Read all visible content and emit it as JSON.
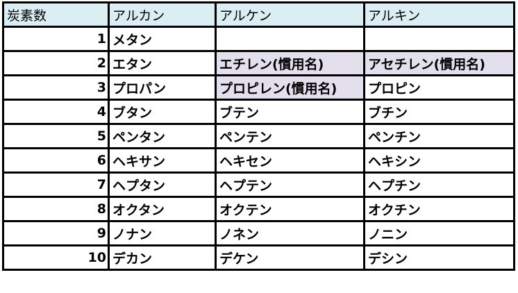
{
  "header": [
    "炭素数",
    "アルカン",
    "アルケン",
    "アルキン"
  ],
  "colors": {
    "header_bg": "#dbeef4",
    "highlight_bg": "#e4dfec"
  },
  "rows": [
    {
      "n": "1",
      "alkane": "メタン",
      "alkene": "",
      "alkyne": "",
      "alkene_highlight": false,
      "alkyne_highlight": false
    },
    {
      "n": "2",
      "alkane": "エタン",
      "alkene": "エチレン(慣用名)",
      "alkyne": "アセチレン(慣用名)",
      "alkene_highlight": true,
      "alkyne_highlight": true
    },
    {
      "n": "3",
      "alkane": "プロパン",
      "alkene": "プロピレン(慣用名)",
      "alkyne": "プロピン",
      "alkene_highlight": true,
      "alkyne_highlight": false
    },
    {
      "n": "4",
      "alkane": "ブタン",
      "alkene": "ブテン",
      "alkyne": "ブチン"
    },
    {
      "n": "5",
      "alkane": "ペンタン",
      "alkene": "ペンテン",
      "alkyne": "ペンチン"
    },
    {
      "n": "6",
      "alkane": "ヘキサン",
      "alkene": "ヘキセン",
      "alkyne": "ヘキシン"
    },
    {
      "n": "7",
      "alkane": "ヘプタン",
      "alkene": "ヘプテン",
      "alkyne": "ヘプチン"
    },
    {
      "n": "8",
      "alkane": "オクタン",
      "alkene": "オクテン",
      "alkyne": "オクチン"
    },
    {
      "n": "9",
      "alkane": "ノナン",
      "alkene": "ノネン",
      "alkyne": "ノニン"
    },
    {
      "n": "10",
      "alkane": "デカン",
      "alkene": "デケン",
      "alkyne": "デシン"
    }
  ]
}
